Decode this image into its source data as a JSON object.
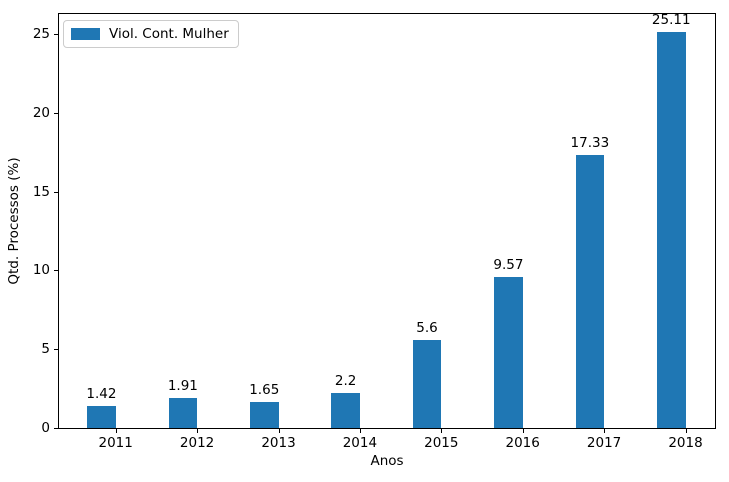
{
  "chart_data": {
    "type": "bar",
    "categories": [
      "2011",
      "2012",
      "2013",
      "2014",
      "2015",
      "2016",
      "2017",
      "2018"
    ],
    "values": [
      1.42,
      1.91,
      1.65,
      2.2,
      5.6,
      9.57,
      17.33,
      25.11
    ],
    "value_labels": [
      "1.42",
      "1.91",
      "1.65",
      "2.2",
      "5.6",
      "9.57",
      "17.33",
      "25.11"
    ],
    "title": "",
    "xlabel": "Anos",
    "ylabel": "Qtd. Processos (%)",
    "yticks": [
      0,
      5,
      10,
      15,
      20,
      25
    ],
    "ylim": [
      0,
      26.26
    ],
    "legend": {
      "label": "Viol. Cont. Mulher",
      "position": "upper left"
    },
    "bar_color": "#1f77b4",
    "axis_color": "#000000",
    "legend_border_color": "#cccccc",
    "grid": false
  }
}
